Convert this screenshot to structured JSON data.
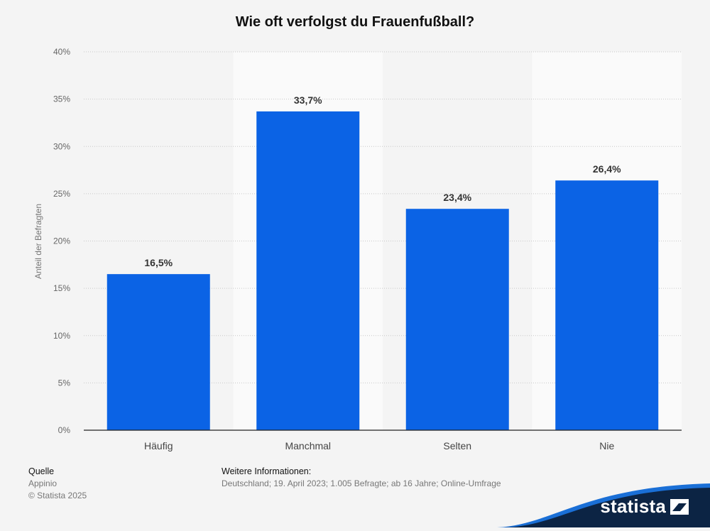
{
  "title": "Wie oft verfolgst du Frauenfußball?",
  "chart_data": {
    "type": "bar",
    "title": "Wie oft verfolgst du Frauenfußball?",
    "categories": [
      "Häufig",
      "Manchmal",
      "Selten",
      "Nie"
    ],
    "values": [
      16.5,
      33.7,
      23.4,
      26.4
    ],
    "value_labels": [
      "16,5%",
      "33,7%",
      "23,4%",
      "26,4%"
    ],
    "ylabel": "Anteil der Befragten",
    "xlabel": "",
    "ylim": [
      0,
      40
    ],
    "yticks": [
      0,
      5,
      10,
      15,
      20,
      25,
      30,
      35,
      40
    ],
    "ytick_labels": [
      "0%",
      "5%",
      "10%",
      "15%",
      "20%",
      "25%",
      "30%",
      "35%",
      "40%"
    ],
    "grid": true,
    "bar_color": "#0b63e5",
    "alt_band_color": "#fafafa"
  },
  "footer": {
    "source_heading": "Quelle",
    "source": "Appinio",
    "copyright": "© Statista 2025",
    "info_heading": "Weitere Informationen:",
    "info": "Deutschland; 19. April 2023; 1.005 Befragte; ab 16 Jahre; Online-Umfrage"
  },
  "brand": {
    "name": "statista",
    "colors": {
      "dark": "#0c2444",
      "accent": "#1a6fd6"
    }
  }
}
